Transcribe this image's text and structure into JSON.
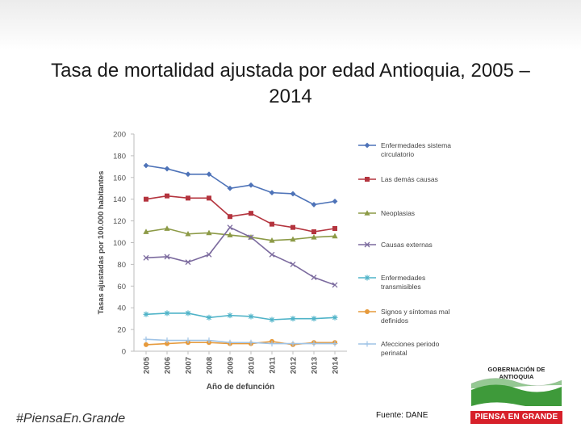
{
  "slide": {
    "title": "Tasa de mortalidad ajustada por edad Antioquia, 2005 – 2014",
    "hashtag": "#PiensaEn.Grande",
    "source": "Fuente: DANE",
    "logo_top_text": "GOBERNACIÓN DE ANTIOQUIA",
    "logo_bottom_text": "PIENSA EN GRANDE",
    "logo_colors": {
      "green": "#3e9a3a",
      "red": "#d7202a"
    }
  },
  "chart_data": {
    "type": "line",
    "title": "",
    "xlabel": "Año de defunción",
    "ylabel": "Tasas ajustadas por 100.000 habitantes",
    "ylim": [
      0,
      200
    ],
    "yticks": [
      0,
      20,
      40,
      60,
      80,
      100,
      120,
      140,
      160,
      180,
      200
    ],
    "categories": [
      "2005",
      "2006",
      "2007",
      "2008",
      "2009",
      "2010",
      "2011",
      "2012",
      "2013",
      "2014"
    ],
    "legend_position": "right",
    "grid": false,
    "series": [
      {
        "name": "Enfermedades sistema circulatorio",
        "color": "#4e73b8",
        "marker": "diamond",
        "values": [
          171,
          168,
          163,
          163,
          150,
          153,
          146,
          145,
          135,
          138
        ]
      },
      {
        "name": "Las demás causas",
        "color": "#b4343e",
        "marker": "square",
        "values": [
          140,
          143,
          141,
          141,
          124,
          127,
          117,
          114,
          110,
          113
        ]
      },
      {
        "name": "Neoplasias",
        "color": "#8c9a46",
        "marker": "triangle",
        "values": [
          110,
          113,
          108,
          109,
          107,
          105,
          102,
          103,
          105,
          106
        ]
      },
      {
        "name": "Causas externas",
        "color": "#7b6a9e",
        "marker": "x",
        "values": [
          86,
          87,
          82,
          89,
          114,
          105,
          89,
          80,
          68,
          61
        ]
      },
      {
        "name": "Enfermedades transmisibles",
        "color": "#4fb3c8",
        "marker": "star",
        "values": [
          34,
          35,
          35,
          31,
          33,
          32,
          29,
          30,
          30,
          31
        ]
      },
      {
        "name": "Signos y síntomas mal definidos",
        "color": "#e69a3c",
        "marker": "circle",
        "values": [
          6,
          7,
          8,
          8,
          7,
          7,
          9,
          6,
          8,
          8
        ]
      },
      {
        "name": "Afecciones periodo perinatal",
        "color": "#9fc3e6",
        "marker": "plus",
        "values": [
          11,
          10,
          10,
          10,
          8,
          8,
          7,
          7,
          7,
          7
        ]
      }
    ]
  }
}
